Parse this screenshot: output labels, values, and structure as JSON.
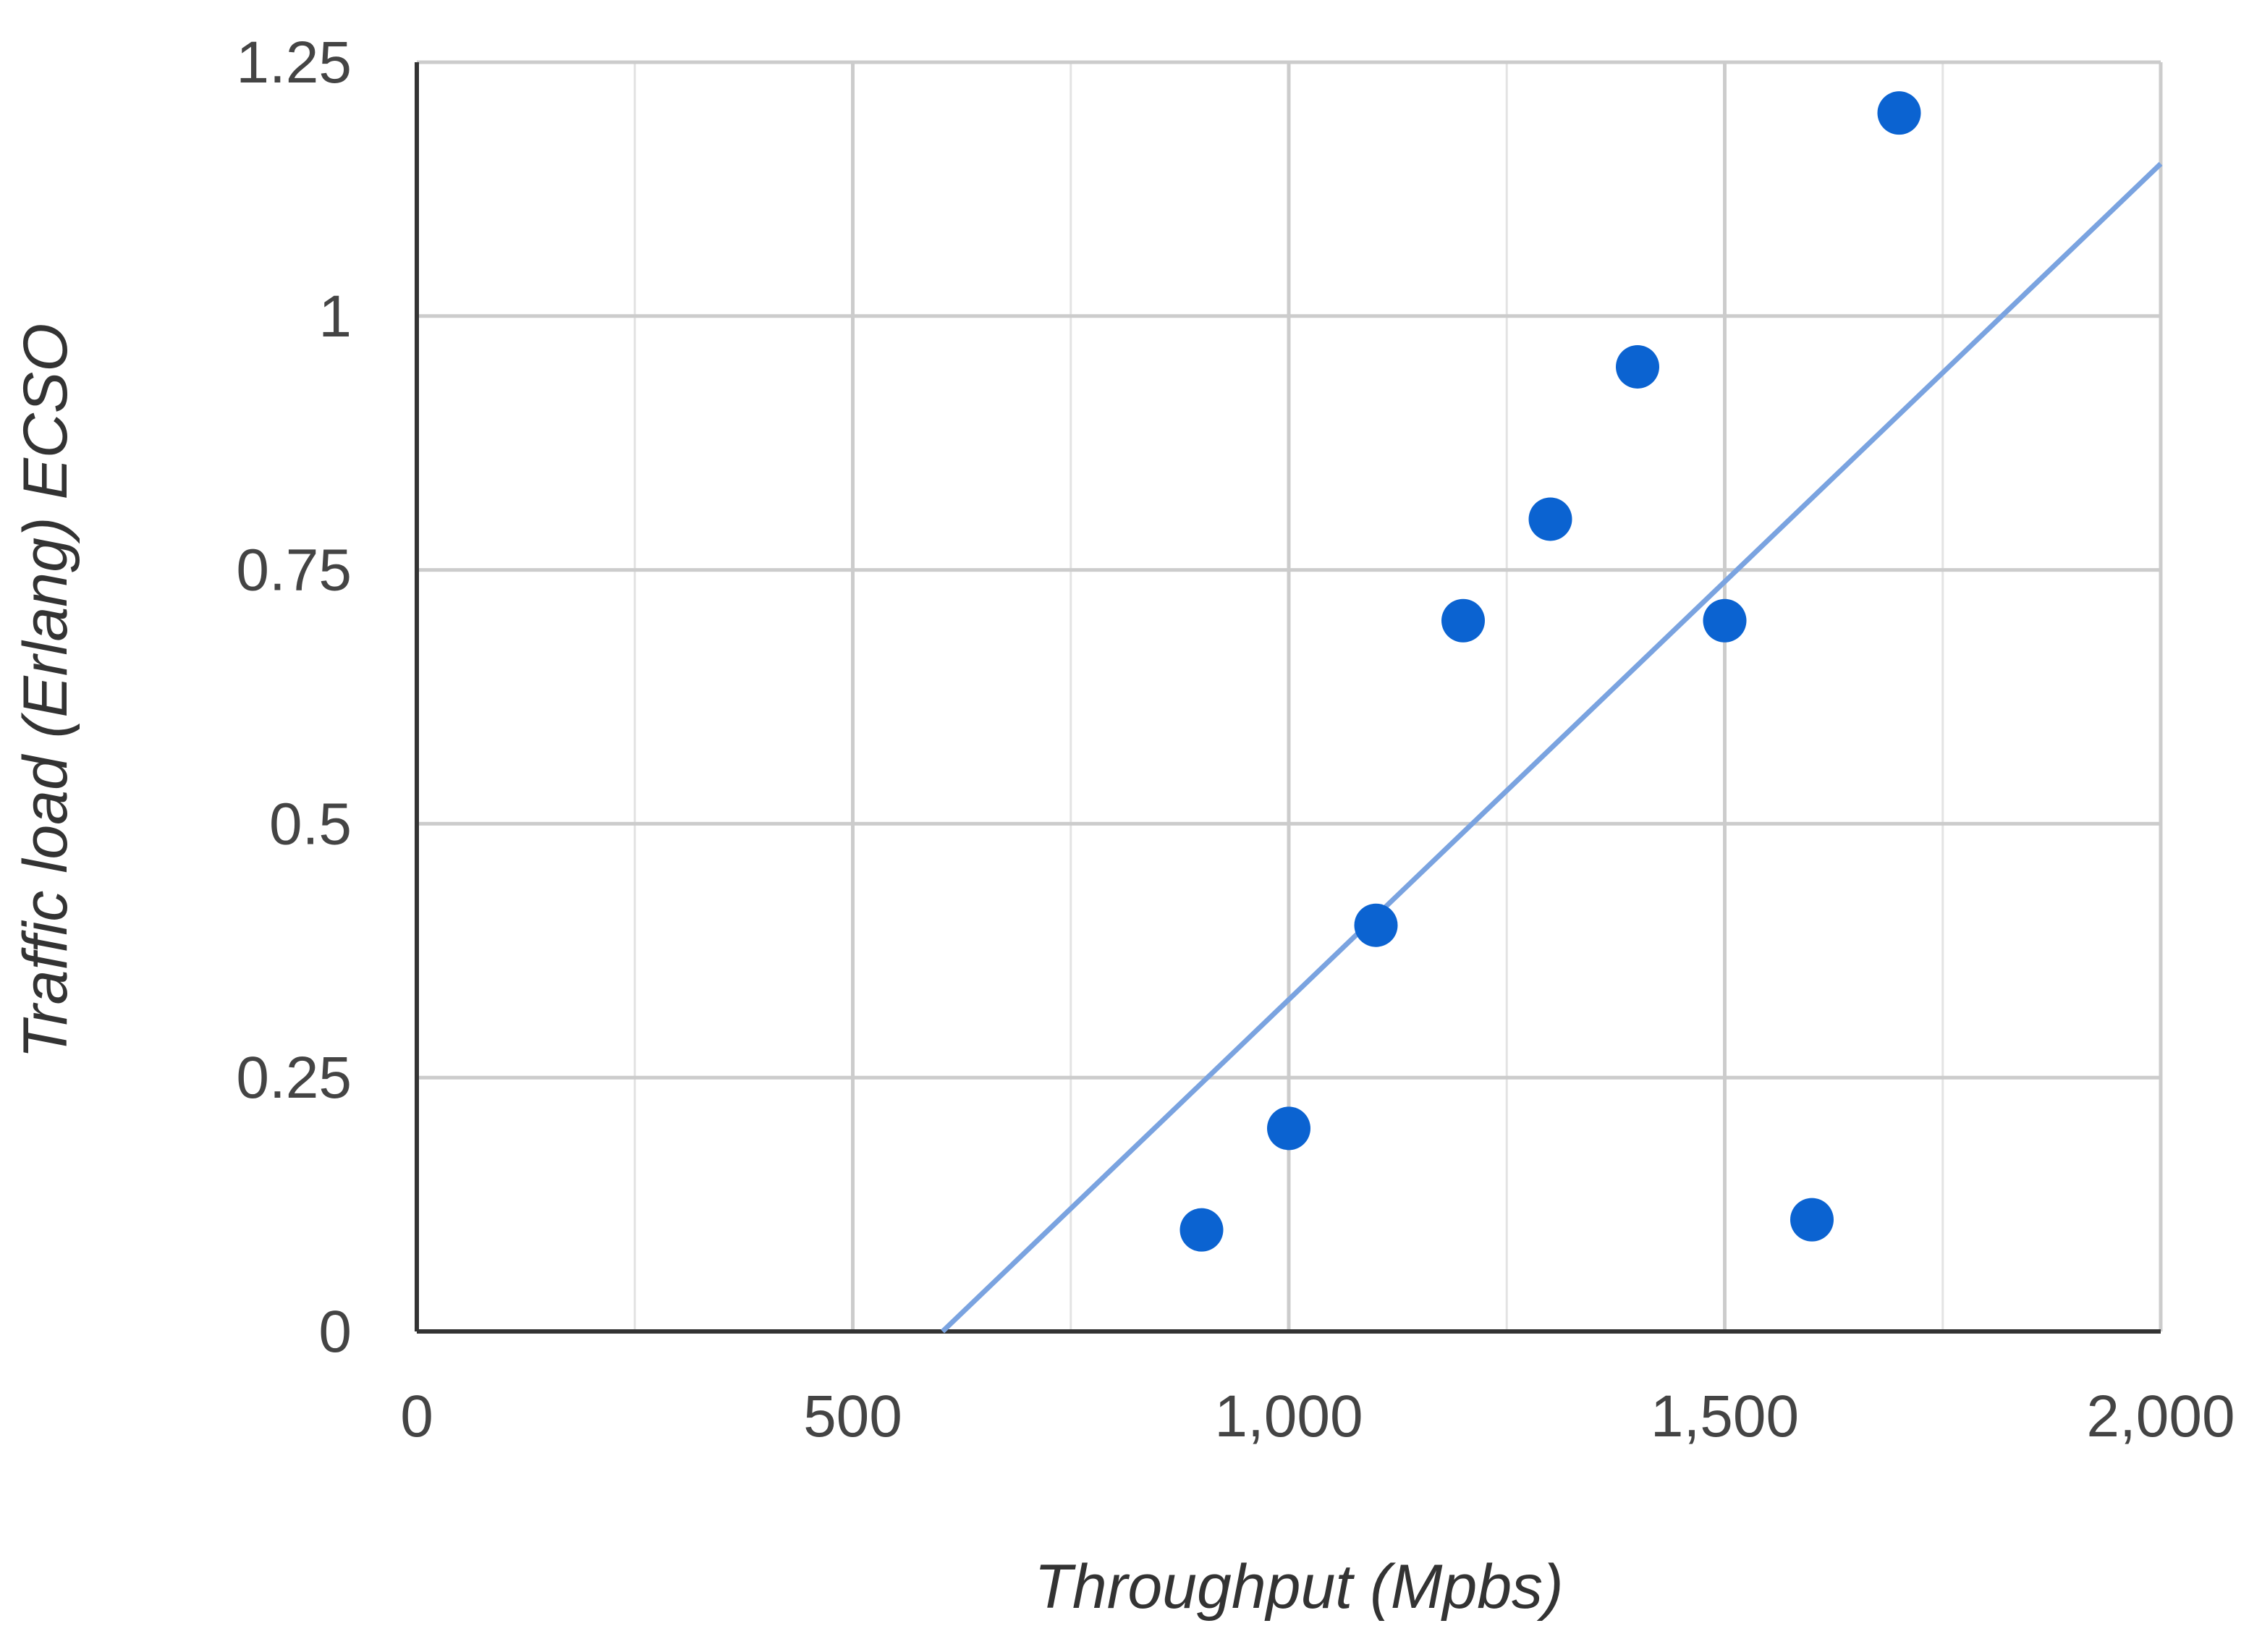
{
  "chart_data": {
    "type": "scatter",
    "title": "",
    "xlabel": "Throughput (Mpbs)",
    "ylabel": "Traffic load (Erlang) ECSO",
    "xlim": [
      0,
      2000
    ],
    "ylim": [
      0,
      1.25
    ],
    "x_ticks": [
      0,
      500,
      1000,
      1500,
      2000
    ],
    "x_tick_labels": [
      "0",
      "500",
      "1,000",
      "1,500",
      "2,000"
    ],
    "x_minor_gridlines": [
      250,
      750,
      1250,
      1750
    ],
    "y_ticks": [
      0,
      0.25,
      0.5,
      0.75,
      1,
      1.25
    ],
    "y_tick_labels": [
      "0",
      "0.25",
      "0.5",
      "0.75",
      "1",
      "1.25"
    ],
    "grid": true,
    "legend": "none",
    "series": [
      {
        "x": [
          900,
          1000,
          1100,
          1200,
          1300,
          1400,
          1500,
          1600,
          1700
        ],
        "y": [
          0.1,
          0.2,
          0.4,
          0.7,
          0.8,
          0.95,
          0.7,
          0.11,
          1.2
        ],
        "color": "#0b63d1"
      }
    ],
    "trendline": {
      "type": "linear",
      "color": "#7aa3e0",
      "from": [
        603,
        0
      ],
      "to": [
        2000,
        1.15
      ]
    },
    "colors": {
      "grid": "#cccccc",
      "axis": "#333333",
      "points": "#0b63d1",
      "trendline": "#7aa3e0"
    }
  }
}
